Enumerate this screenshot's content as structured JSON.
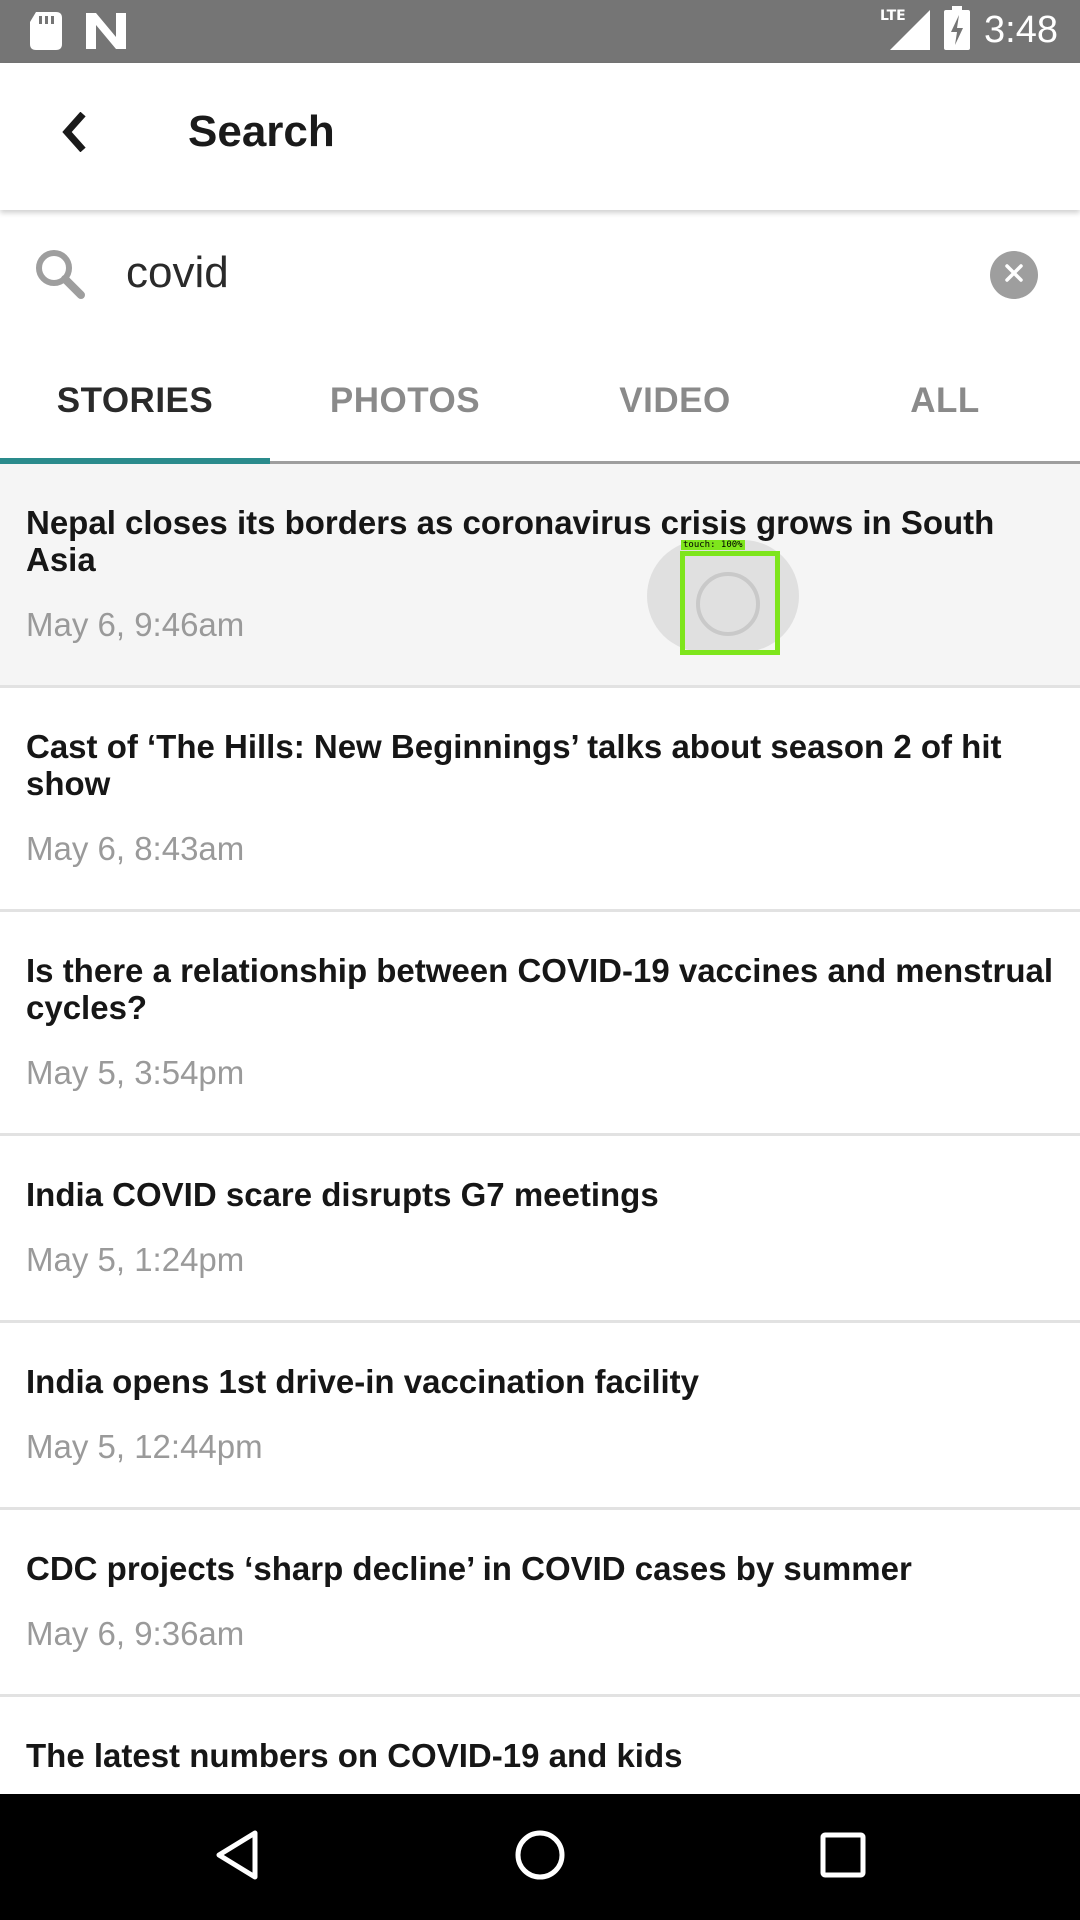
{
  "status_bar": {
    "time": "3:48",
    "network": "LTE",
    "icons": [
      "sd-card-icon",
      "n-app-icon",
      "lte-signal-icon",
      "battery-charging-icon"
    ]
  },
  "header": {
    "title": "Search",
    "back_icon": "back-chevron-icon"
  },
  "search": {
    "value": "covid",
    "placeholder": "",
    "clear_icon": "clear-icon"
  },
  "tabs": [
    {
      "label": "STORIES",
      "active": true
    },
    {
      "label": "PHOTOS",
      "active": false
    },
    {
      "label": "VIDEO",
      "active": false
    },
    {
      "label": "ALL",
      "active": false
    }
  ],
  "stories": [
    {
      "title": "Nepal closes its borders as coronavirus crisis grows in South Asia",
      "date": "May 6, 9:46am"
    },
    {
      "title": "Cast of ‘The Hills: New Beginnings’ talks about season 2 of hit show",
      "date": "May 6, 8:43am"
    },
    {
      "title": "Is there a relationship between COVID-19 vaccines and menstrual cycles?",
      "date": "May 5, 3:54pm"
    },
    {
      "title": "India COVID scare disrupts G7 meetings",
      "date": "May 5, 1:24pm"
    },
    {
      "title": "India opens 1st drive-in vaccination facility",
      "date": "May 5, 12:44pm"
    },
    {
      "title": "CDC projects ‘sharp decline’ in COVID cases by summer",
      "date": "May 6, 9:36am"
    },
    {
      "title": "The latest numbers on COVID-19 and kids",
      "date": ""
    }
  ],
  "touch_indicator": {
    "label": "touch: 100%"
  },
  "colors": {
    "accent": "#2a8b8c",
    "status_bar": "#757575",
    "touch_box": "#7ee51c",
    "date_text": "#9a9a9a"
  },
  "nav": {
    "icons": [
      "back-triangle-icon",
      "home-circle-icon",
      "recents-square-icon"
    ]
  }
}
